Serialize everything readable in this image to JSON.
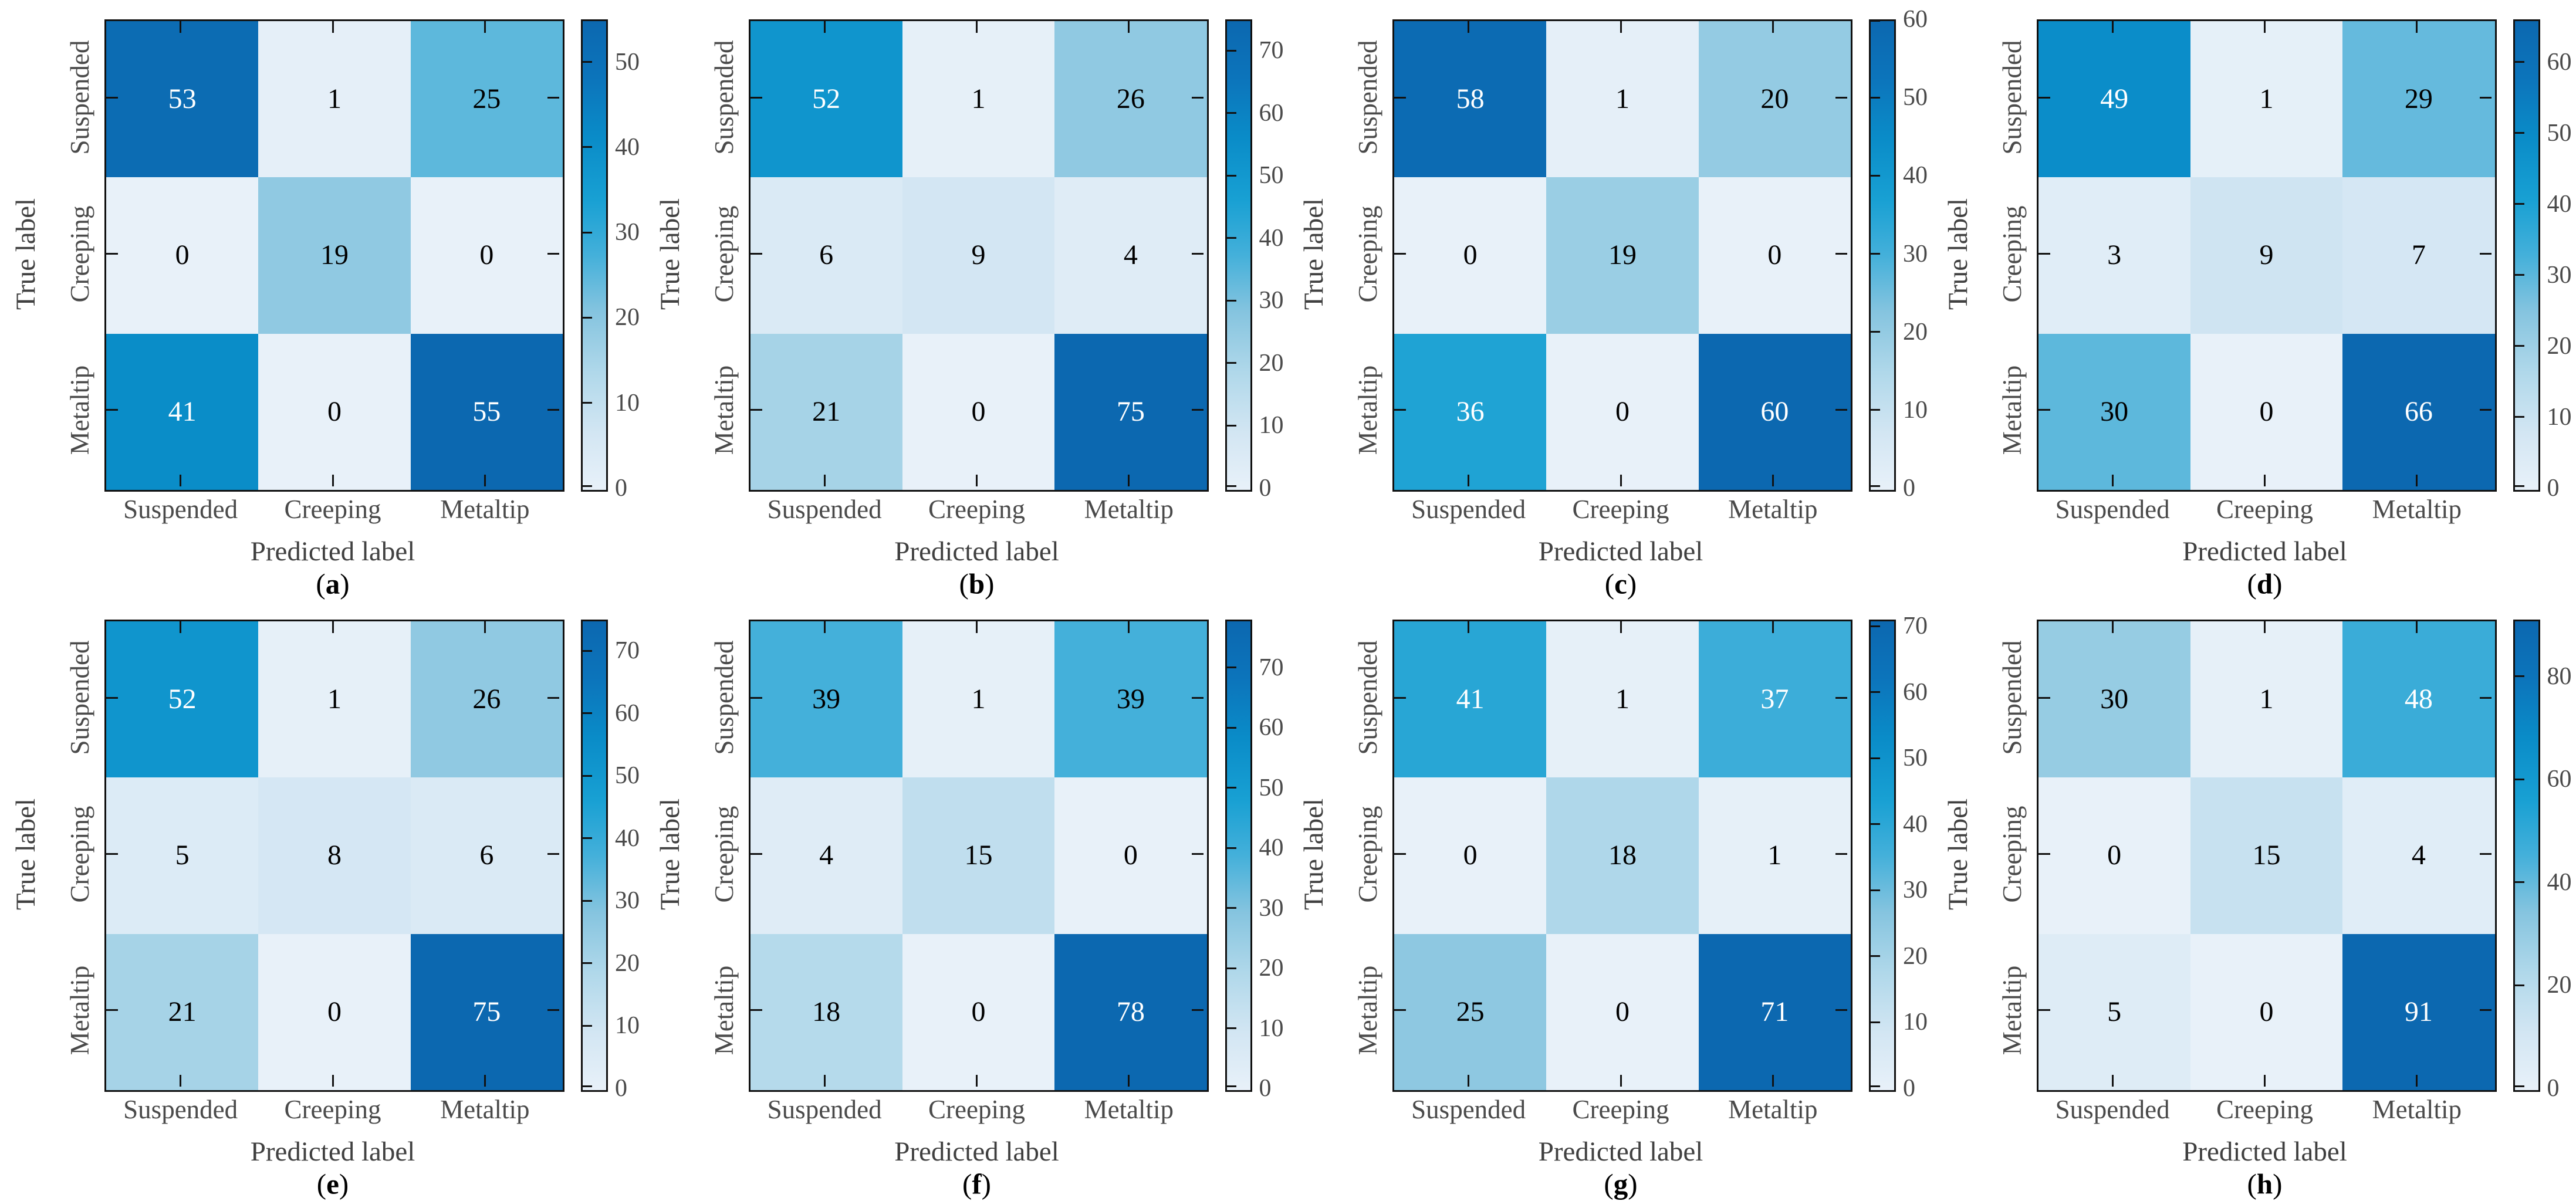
{
  "figure": {
    "xlabel": "Predicted label",
    "ylabel": "True label",
    "classes": [
      "Suspended",
      "Creeping",
      "Metaltip"
    ],
    "background": "#ffffff",
    "axis_tick_text_color": "#4a4a4a",
    "axis_label_text_color": "#404040",
    "border_color": "#111111"
  },
  "colormap": {
    "description": "light-blue to dark-blue sequential colormap",
    "stops": [
      {
        "t": 0.0,
        "color": "#e8f1f9"
      },
      {
        "t": 0.12,
        "color": "#d3e6f3"
      },
      {
        "t": 0.25,
        "color": "#b0d8ea"
      },
      {
        "t": 0.38,
        "color": "#85c4df"
      },
      {
        "t": 0.5,
        "color": "#44b0da"
      },
      {
        "t": 0.62,
        "color": "#18a0d3"
      },
      {
        "t": 0.75,
        "color": "#0a8cc8"
      },
      {
        "t": 0.88,
        "color": "#0c74bb"
      },
      {
        "t": 1.0,
        "color": "#0c68b0"
      }
    ]
  },
  "cell_text": {
    "light": "#ffffff",
    "dark": "#000000",
    "white_threshold": 0.51
  },
  "chart_data": [
    {
      "type": "heatmap",
      "caption": "a",
      "x_categories": [
        "Suspended",
        "Creeping",
        "Metaltip"
      ],
      "y_categories": [
        "Suspended",
        "Creeping",
        "Metaltip"
      ],
      "xlabel": "Predicted label",
      "ylabel": "True label",
      "rows": [
        [
          53,
          1,
          25
        ],
        [
          0,
          19,
          0
        ],
        [
          41,
          0,
          55
        ]
      ],
      "vmax": 55,
      "colorbar_ticks": [
        0,
        10,
        20,
        30,
        40,
        50
      ],
      "legend_position": "right"
    },
    {
      "type": "heatmap",
      "caption": "b",
      "x_categories": [
        "Suspended",
        "Creeping",
        "Metaltip"
      ],
      "y_categories": [
        "Suspended",
        "Creeping",
        "Metaltip"
      ],
      "xlabel": "Predicted label",
      "ylabel": "True label",
      "rows": [
        [
          52,
          1,
          26
        ],
        [
          6,
          9,
          4
        ],
        [
          21,
          0,
          75
        ]
      ],
      "vmax": 75,
      "colorbar_ticks": [
        0,
        10,
        20,
        30,
        40,
        50,
        60,
        70
      ],
      "legend_position": "right"
    },
    {
      "type": "heatmap",
      "caption": "c",
      "x_categories": [
        "Suspended",
        "Creeping",
        "Metaltip"
      ],
      "y_categories": [
        "Suspended",
        "Creeping",
        "Metaltip"
      ],
      "xlabel": "Predicted label",
      "ylabel": "True label",
      "rows": [
        [
          58,
          1,
          20
        ],
        [
          0,
          19,
          0
        ],
        [
          36,
          0,
          60
        ]
      ],
      "vmax": 60,
      "colorbar_ticks": [
        0,
        10,
        20,
        30,
        40,
        50,
        60
      ],
      "legend_position": "right"
    },
    {
      "type": "heatmap",
      "caption": "d",
      "x_categories": [
        "Suspended",
        "Creeping",
        "Metaltip"
      ],
      "y_categories": [
        "Suspended",
        "Creeping",
        "Metaltip"
      ],
      "xlabel": "Predicted label",
      "ylabel": "True label",
      "rows": [
        [
          49,
          1,
          29
        ],
        [
          3,
          9,
          7
        ],
        [
          30,
          0,
          66
        ]
      ],
      "vmax": 66,
      "colorbar_ticks": [
        0,
        10,
        20,
        30,
        40,
        50,
        60
      ],
      "legend_position": "right"
    },
    {
      "type": "heatmap",
      "caption": "e",
      "x_categories": [
        "Suspended",
        "Creeping",
        "Metaltip"
      ],
      "y_categories": [
        "Suspended",
        "Creeping",
        "Metaltip"
      ],
      "xlabel": "Predicted label",
      "ylabel": "True label",
      "rows": [
        [
          52,
          1,
          26
        ],
        [
          5,
          8,
          6
        ],
        [
          21,
          0,
          75
        ]
      ],
      "vmax": 75,
      "colorbar_ticks": [
        0,
        10,
        20,
        30,
        40,
        50,
        60,
        70
      ],
      "legend_position": "right"
    },
    {
      "type": "heatmap",
      "caption": "f",
      "x_categories": [
        "Suspended",
        "Creeping",
        "Metaltip"
      ],
      "y_categories": [
        "Suspended",
        "Creeping",
        "Metaltip"
      ],
      "xlabel": "Predicted label",
      "ylabel": "True label",
      "rows": [
        [
          39,
          1,
          39
        ],
        [
          4,
          15,
          0
        ],
        [
          18,
          0,
          78
        ]
      ],
      "vmax": 78,
      "colorbar_ticks": [
        0,
        10,
        20,
        30,
        40,
        50,
        60,
        70
      ],
      "legend_position": "right"
    },
    {
      "type": "heatmap",
      "caption": "g",
      "x_categories": [
        "Suspended",
        "Creeping",
        "Metaltip"
      ],
      "y_categories": [
        "Suspended",
        "Creeping",
        "Metaltip"
      ],
      "xlabel": "Predicted label",
      "ylabel": "True label",
      "rows": [
        [
          41,
          1,
          37
        ],
        [
          0,
          18,
          1
        ],
        [
          25,
          0,
          71
        ]
      ],
      "vmax": 71,
      "colorbar_ticks": [
        0,
        10,
        20,
        30,
        40,
        50,
        60,
        70
      ],
      "legend_position": "right"
    },
    {
      "type": "heatmap",
      "caption": "h",
      "x_categories": [
        "Suspended",
        "Creeping",
        "Metaltip"
      ],
      "y_categories": [
        "Suspended",
        "Creeping",
        "Metaltip"
      ],
      "xlabel": "Predicted label",
      "ylabel": "True label",
      "rows": [
        [
          30,
          1,
          48
        ],
        [
          0,
          15,
          4
        ],
        [
          5,
          0,
          91
        ]
      ],
      "vmax": 91,
      "colorbar_ticks": [
        0,
        20,
        40,
        60,
        80
      ],
      "legend_position": "right"
    }
  ]
}
